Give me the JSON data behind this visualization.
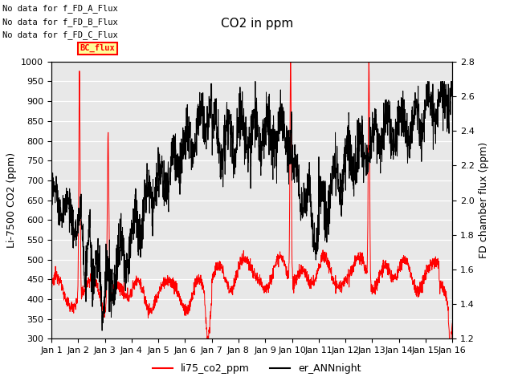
{
  "title": "CO2 in ppm",
  "ylabel_left": "Li-7500 CO2 (ppm)",
  "ylabel_right": "FD chamber flux (ppm)",
  "ylim_left": [
    300,
    1000
  ],
  "ylim_right": [
    1.2,
    2.8
  ],
  "xlim": [
    0,
    15
  ],
  "xtick_labels": [
    "Jan 1",
    "Jan 2",
    "Jan 3",
    "Jan 4",
    "Jan 5",
    "Jan 6",
    "Jan 7",
    "Jan 8",
    "Jan 9",
    "Jan 10",
    "Jan 11",
    "Jan 12",
    "Jan 13",
    "Jan 14",
    "Jan 15",
    "Jan 16"
  ],
  "yticks_left": [
    300,
    350,
    400,
    450,
    500,
    550,
    600,
    650,
    700,
    750,
    800,
    850,
    900,
    950,
    1000
  ],
  "yticks_right": [
    1.2,
    1.4,
    1.6,
    1.8,
    2.0,
    2.2,
    2.4,
    2.6,
    2.8
  ],
  "background_color": "#e8e8e8",
  "legend_labels": [
    "li75_co2_ppm",
    "er_ANNnight"
  ],
  "legend_colors": [
    "red",
    "black"
  ],
  "text_lines": [
    "No data for f_FD_A_Flux",
    "No data for f_FD_B_Flux",
    "No data for f_FD_C_Flux"
  ],
  "legend_box_label": "BC_flux",
  "legend_box_color": "#ffff99",
  "legend_box_border": "red"
}
